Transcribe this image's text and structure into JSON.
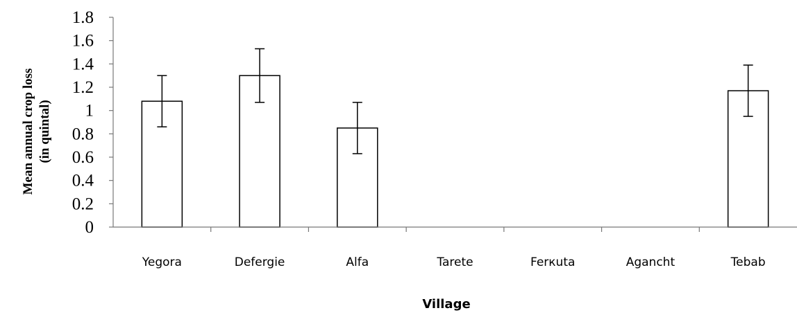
{
  "chart_data": {
    "type": "bar",
    "categories": [
      "Yegora",
      "Defergie",
      "Alfa",
      "Tarete",
      "Ferкuta",
      "Agancht",
      "Tebab"
    ],
    "values": [
      1.08,
      1.3,
      0.85,
      0,
      0,
      0,
      1.17
    ],
    "error": [
      0.22,
      0.23,
      0.22,
      0,
      0,
      0,
      0.22
    ],
    "xlabel": "Village",
    "ylabel_line1": "Mean annual crop loss",
    "ylabel_line2": "(in quintal)",
    "ylim": [
      0,
      1.8
    ],
    "yticks": [
      "0",
      "0.2",
      "0.4",
      "0.6",
      "0.8",
      "1",
      "1.2",
      "1.4",
      "1.6",
      "1.8"
    ],
    "grid": false,
    "bar_fill": "#ffffff",
    "bar_stroke": "#000000"
  }
}
